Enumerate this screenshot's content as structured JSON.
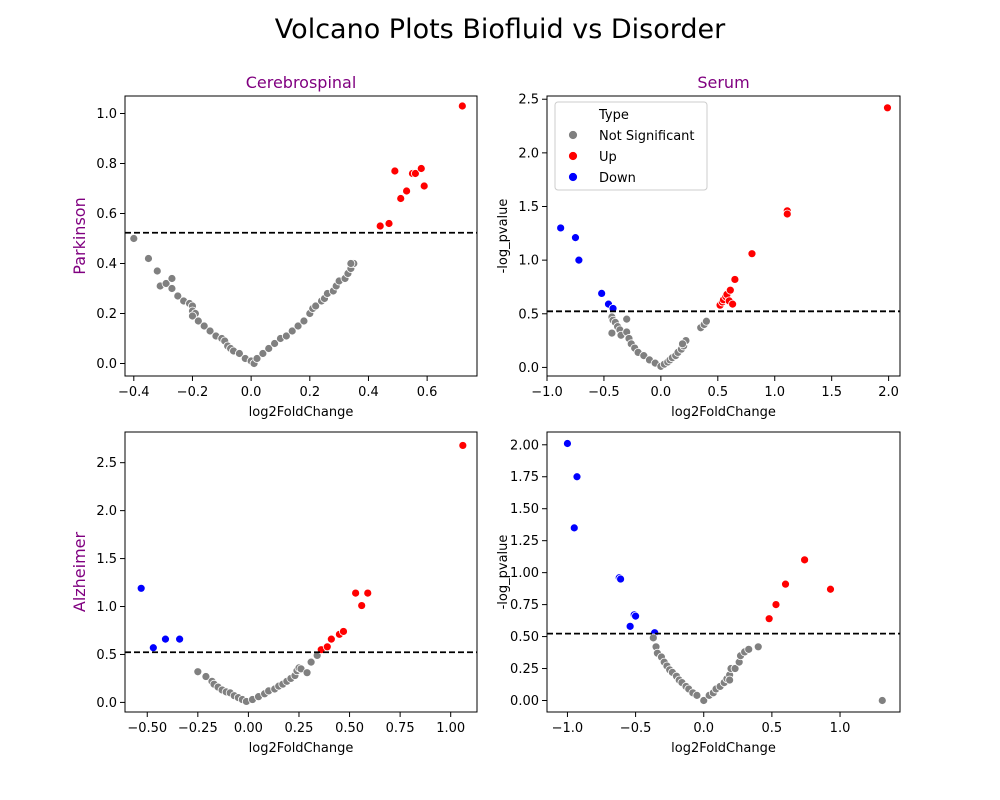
{
  "figure": {
    "suptitle": "Volcano Plots Biofluid vs Disorder"
  },
  "colors": {
    "Not Significant": "#808080",
    "Up": "#ff0000",
    "Down": "#0000ff",
    "title_accent": "#800080"
  },
  "legend": {
    "title": "Type",
    "entries": [
      "Not Significant",
      "Up",
      "Down"
    ],
    "placement": "upper-left of Parkinson/Serum panel"
  },
  "chart_data": [
    {
      "type": "scatter",
      "row_label": "Parkinson",
      "title": "Cerebrospinal",
      "xlabel": "log2FoldChange",
      "ylabel": "",
      "xlim": [
        -0.43,
        0.77
      ],
      "ylim": [
        -0.05,
        1.07
      ],
      "xticks": [
        -0.4,
        -0.2,
        0.0,
        0.2,
        0.4,
        0.6
      ],
      "xtick_labels": [
        "−0.4",
        "−0.2",
        "0.0",
        "0.2",
        "0.4",
        "0.6"
      ],
      "yticks": [
        0.0,
        0.2,
        0.4,
        0.6,
        0.8,
        1.0
      ],
      "ytick_labels": [
        "0.0",
        "0.2",
        "0.4",
        "0.6",
        "0.8",
        "1.0"
      ],
      "threshold": 0.523,
      "points": [
        [
          -0.4,
          0.5,
          "N"
        ],
        [
          -0.35,
          0.42,
          "N"
        ],
        [
          -0.32,
          0.37,
          "N"
        ],
        [
          -0.31,
          0.31,
          "N"
        ],
        [
          -0.29,
          0.32,
          "N"
        ],
        [
          -0.27,
          0.34,
          "N"
        ],
        [
          -0.27,
          0.3,
          "N"
        ],
        [
          -0.25,
          0.27,
          "N"
        ],
        [
          -0.23,
          0.25,
          "N"
        ],
        [
          -0.21,
          0.24,
          "N"
        ],
        [
          -0.2,
          0.23,
          "N"
        ],
        [
          -0.2,
          0.21,
          "N"
        ],
        [
          -0.19,
          0.2,
          "N"
        ],
        [
          -0.2,
          0.19,
          "N"
        ],
        [
          -0.18,
          0.17,
          "N"
        ],
        [
          -0.16,
          0.15,
          "N"
        ],
        [
          -0.14,
          0.13,
          "N"
        ],
        [
          -0.12,
          0.11,
          "N"
        ],
        [
          -0.1,
          0.1,
          "N"
        ],
        [
          -0.09,
          0.09,
          "N"
        ],
        [
          -0.08,
          0.07,
          "N"
        ],
        [
          -0.07,
          0.06,
          "N"
        ],
        [
          -0.06,
          0.05,
          "N"
        ],
        [
          -0.04,
          0.04,
          "N"
        ],
        [
          -0.02,
          0.02,
          "N"
        ],
        [
          0.0,
          0.01,
          "N"
        ],
        [
          0.01,
          0.0,
          "N"
        ],
        [
          0.02,
          0.02,
          "N"
        ],
        [
          0.04,
          0.04,
          "N"
        ],
        [
          0.06,
          0.06,
          "N"
        ],
        [
          0.08,
          0.08,
          "N"
        ],
        [
          0.1,
          0.1,
          "N"
        ],
        [
          0.12,
          0.11,
          "N"
        ],
        [
          0.14,
          0.13,
          "N"
        ],
        [
          0.16,
          0.15,
          "N"
        ],
        [
          0.18,
          0.17,
          "N"
        ],
        [
          0.2,
          0.2,
          "N"
        ],
        [
          0.21,
          0.22,
          "N"
        ],
        [
          0.22,
          0.23,
          "N"
        ],
        [
          0.24,
          0.25,
          "N"
        ],
        [
          0.25,
          0.26,
          "N"
        ],
        [
          0.26,
          0.28,
          "N"
        ],
        [
          0.28,
          0.29,
          "N"
        ],
        [
          0.29,
          0.31,
          "N"
        ],
        [
          0.3,
          0.33,
          "N"
        ],
        [
          0.32,
          0.34,
          "N"
        ],
        [
          0.33,
          0.36,
          "N"
        ],
        [
          0.34,
          0.38,
          "N"
        ],
        [
          0.35,
          0.4,
          "N"
        ],
        [
          0.34,
          0.4,
          "N"
        ],
        [
          0.44,
          0.55,
          "U"
        ],
        [
          0.47,
          0.56,
          "U"
        ],
        [
          0.49,
          0.77,
          "U"
        ],
        [
          0.51,
          0.66,
          "U"
        ],
        [
          0.53,
          0.69,
          "U"
        ],
        [
          0.55,
          0.76,
          "U"
        ],
        [
          0.56,
          0.76,
          "U"
        ],
        [
          0.58,
          0.78,
          "U"
        ],
        [
          0.59,
          0.71,
          "U"
        ],
        [
          0.72,
          1.03,
          "U"
        ]
      ]
    },
    {
      "type": "scatter",
      "row_label": "",
      "title": "Serum",
      "xlabel": "log2FoldChange",
      "ylabel": "-log_pvalue",
      "xlim": [
        -1.0,
        2.1
      ],
      "ylim": [
        -0.08,
        2.53
      ],
      "xticks": [
        -1.0,
        -0.5,
        0.0,
        0.5,
        1.0,
        1.5,
        2.0
      ],
      "xtick_labels": [
        "−1.0",
        "−0.5",
        "0.0",
        "0.5",
        "1.0",
        "1.5",
        "2.0"
      ],
      "yticks": [
        0.0,
        0.5,
        1.0,
        1.5,
        2.0,
        2.5
      ],
      "ytick_labels": [
        "0.0",
        "0.5",
        "1.0",
        "1.5",
        "2.0",
        "2.5"
      ],
      "threshold": 0.523,
      "points": [
        [
          -0.88,
          1.3,
          "D"
        ],
        [
          -0.75,
          1.21,
          "D"
        ],
        [
          -0.72,
          1.0,
          "D"
        ],
        [
          -0.52,
          0.69,
          "D"
        ],
        [
          -0.46,
          0.59,
          "D"
        ],
        [
          -0.42,
          0.55,
          "D"
        ],
        [
          -0.43,
          0.47,
          "N"
        ],
        [
          -0.42,
          0.44,
          "N"
        ],
        [
          -0.4,
          0.42,
          "N"
        ],
        [
          -0.38,
          0.38,
          "N"
        ],
        [
          -0.36,
          0.35,
          "N"
        ],
        [
          -0.43,
          0.32,
          "N"
        ],
        [
          -0.35,
          0.3,
          "N"
        ],
        [
          -0.3,
          0.33,
          "N"
        ],
        [
          -0.28,
          0.27,
          "N"
        ],
        [
          -0.26,
          0.22,
          "N"
        ],
        [
          -0.23,
          0.18,
          "N"
        ],
        [
          -0.2,
          0.14,
          "N"
        ],
        [
          -0.15,
          0.11,
          "N"
        ],
        [
          -0.1,
          0.07,
          "N"
        ],
        [
          -0.05,
          0.04,
          "N"
        ],
        [
          0.0,
          0.01,
          "N"
        ],
        [
          0.03,
          0.03,
          "N"
        ],
        [
          0.06,
          0.05,
          "N"
        ],
        [
          0.08,
          0.07,
          "N"
        ],
        [
          0.1,
          0.09,
          "N"
        ],
        [
          0.13,
          0.11,
          "N"
        ],
        [
          0.15,
          0.14,
          "N"
        ],
        [
          0.18,
          0.17,
          "N"
        ],
        [
          0.2,
          0.2,
          "N"
        ],
        [
          0.22,
          0.25,
          "N"
        ],
        [
          0.35,
          0.37,
          "N"
        ],
        [
          0.38,
          0.4,
          "N"
        ],
        [
          0.4,
          0.43,
          "N"
        ],
        [
          -0.3,
          0.45,
          "N"
        ],
        [
          0.19,
          0.22,
          "N"
        ],
        [
          0.52,
          0.58,
          "U"
        ],
        [
          0.54,
          0.61,
          "U"
        ],
        [
          0.55,
          0.63,
          "U"
        ],
        [
          0.57,
          0.66,
          "U"
        ],
        [
          0.58,
          0.68,
          "U"
        ],
        [
          0.6,
          0.62,
          "U"
        ],
        [
          0.61,
          0.72,
          "U"
        ],
        [
          0.63,
          0.59,
          "U"
        ],
        [
          0.65,
          0.82,
          "U"
        ],
        [
          0.8,
          1.06,
          "U"
        ],
        [
          1.11,
          1.46,
          "U"
        ],
        [
          1.11,
          1.43,
          "U"
        ],
        [
          1.99,
          2.42,
          "U"
        ]
      ]
    },
    {
      "type": "scatter",
      "row_label": "Alzheimer",
      "title": "",
      "xlabel": "log2FoldChange",
      "ylabel": "",
      "xlim": [
        -0.61,
        1.13
      ],
      "ylim": [
        -0.1,
        2.82
      ],
      "xticks": [
        -0.5,
        -0.25,
        0.0,
        0.25,
        0.5,
        0.75,
        1.0
      ],
      "xtick_labels": [
        "−0.50",
        "−0.25",
        "0.00",
        "0.25",
        "0.50",
        "0.75",
        "1.00"
      ],
      "yticks": [
        0.0,
        0.5,
        1.0,
        1.5,
        2.0,
        2.5
      ],
      "ytick_labels": [
        "0.0",
        "0.5",
        "1.0",
        "1.5",
        "2.0",
        "2.5"
      ],
      "threshold": 0.523,
      "points": [
        [
          -0.53,
          1.19,
          "D"
        ],
        [
          -0.47,
          0.57,
          "D"
        ],
        [
          -0.41,
          0.66,
          "D"
        ],
        [
          -0.34,
          0.66,
          "D"
        ],
        [
          -0.25,
          0.32,
          "N"
        ],
        [
          -0.21,
          0.27,
          "N"
        ],
        [
          -0.18,
          0.22,
          "N"
        ],
        [
          -0.17,
          0.19,
          "N"
        ],
        [
          -0.15,
          0.16,
          "N"
        ],
        [
          -0.13,
          0.13,
          "N"
        ],
        [
          -0.11,
          0.11,
          "N"
        ],
        [
          -0.09,
          0.1,
          "N"
        ],
        [
          -0.07,
          0.07,
          "N"
        ],
        [
          -0.05,
          0.05,
          "N"
        ],
        [
          -0.03,
          0.03,
          "N"
        ],
        [
          -0.01,
          0.01,
          "N"
        ],
        [
          0.02,
          0.03,
          "N"
        ],
        [
          0.05,
          0.06,
          "N"
        ],
        [
          0.08,
          0.09,
          "N"
        ],
        [
          0.1,
          0.12,
          "N"
        ],
        [
          0.13,
          0.14,
          "N"
        ],
        [
          0.15,
          0.17,
          "N"
        ],
        [
          0.17,
          0.19,
          "N"
        ],
        [
          0.19,
          0.22,
          "N"
        ],
        [
          0.21,
          0.25,
          "N"
        ],
        [
          0.23,
          0.28,
          "N"
        ],
        [
          0.24,
          0.33,
          "N"
        ],
        [
          0.25,
          0.36,
          "N"
        ],
        [
          0.26,
          0.35,
          "N"
        ],
        [
          0.29,
          0.31,
          "N"
        ],
        [
          0.31,
          0.42,
          "N"
        ],
        [
          0.34,
          0.49,
          "N"
        ],
        [
          0.36,
          0.55,
          "U"
        ],
        [
          0.39,
          0.58,
          "U"
        ],
        [
          0.41,
          0.66,
          "U"
        ],
        [
          0.45,
          0.71,
          "U"
        ],
        [
          0.47,
          0.74,
          "U"
        ],
        [
          0.53,
          1.14,
          "U"
        ],
        [
          0.56,
          1.01,
          "U"
        ],
        [
          0.59,
          1.14,
          "U"
        ],
        [
          1.06,
          2.68,
          "U"
        ]
      ]
    },
    {
      "type": "scatter",
      "row_label": "",
      "title": "",
      "xlabel": "log2FoldChange",
      "ylabel": "-log_pvalue",
      "xlim": [
        -1.15,
        1.44
      ],
      "ylim": [
        -0.09,
        2.1
      ],
      "xticks": [
        -1.0,
        -0.5,
        0.0,
        0.5,
        1.0
      ],
      "xtick_labels": [
        "−1.0",
        "−0.5",
        "0.0",
        "0.5",
        "1.0"
      ],
      "yticks": [
        0.0,
        0.25,
        0.5,
        0.75,
        1.0,
        1.25,
        1.5,
        1.75,
        2.0
      ],
      "ytick_labels": [
        "0.00",
        "0.25",
        "0.50",
        "0.75",
        "1.00",
        "1.25",
        "1.50",
        "1.75",
        "2.00"
      ],
      "threshold": 0.523,
      "points": [
        [
          -1.0,
          2.01,
          "D"
        ],
        [
          -0.93,
          1.75,
          "D"
        ],
        [
          -0.95,
          1.35,
          "D"
        ],
        [
          -0.62,
          0.96,
          "D"
        ],
        [
          -0.61,
          0.95,
          "D"
        ],
        [
          -0.51,
          0.67,
          "D"
        ],
        [
          -0.54,
          0.58,
          "D"
        ],
        [
          -0.36,
          0.53,
          "D"
        ],
        [
          -0.5,
          0.66,
          "D"
        ],
        [
          -0.37,
          0.49,
          "N"
        ],
        [
          -0.35,
          0.42,
          "N"
        ],
        [
          -0.34,
          0.37,
          "N"
        ],
        [
          -0.31,
          0.34,
          "N"
        ],
        [
          -0.29,
          0.3,
          "N"
        ],
        [
          -0.27,
          0.27,
          "N"
        ],
        [
          -0.25,
          0.24,
          "N"
        ],
        [
          -0.23,
          0.22,
          "N"
        ],
        [
          -0.2,
          0.19,
          "N"
        ],
        [
          -0.18,
          0.16,
          "N"
        ],
        [
          -0.16,
          0.14,
          "N"
        ],
        [
          -0.13,
          0.11,
          "N"
        ],
        [
          -0.11,
          0.09,
          "N"
        ],
        [
          -0.08,
          0.06,
          "N"
        ],
        [
          -0.05,
          0.04,
          "N"
        ],
        [
          0.0,
          0.0,
          "N"
        ],
        [
          0.04,
          0.04,
          "N"
        ],
        [
          0.07,
          0.06,
          "N"
        ],
        [
          0.09,
          0.09,
          "N"
        ],
        [
          0.12,
          0.11,
          "N"
        ],
        [
          0.15,
          0.14,
          "N"
        ],
        [
          0.17,
          0.17,
          "N"
        ],
        [
          0.19,
          0.2,
          "N"
        ],
        [
          0.2,
          0.25,
          "N"
        ],
        [
          0.23,
          0.25,
          "N"
        ],
        [
          0.26,
          0.3,
          "N"
        ],
        [
          0.27,
          0.35,
          "N"
        ],
        [
          0.3,
          0.38,
          "N"
        ],
        [
          0.33,
          0.4,
          "N"
        ],
        [
          0.4,
          0.42,
          "N"
        ],
        [
          0.19,
          0.16,
          "N"
        ],
        [
          1.31,
          0.0,
          "N"
        ],
        [
          0.48,
          0.64,
          "U"
        ],
        [
          0.53,
          0.75,
          "U"
        ],
        [
          0.6,
          0.91,
          "U"
        ],
        [
          0.74,
          1.1,
          "U"
        ],
        [
          0.93,
          0.87,
          "U"
        ]
      ]
    }
  ]
}
